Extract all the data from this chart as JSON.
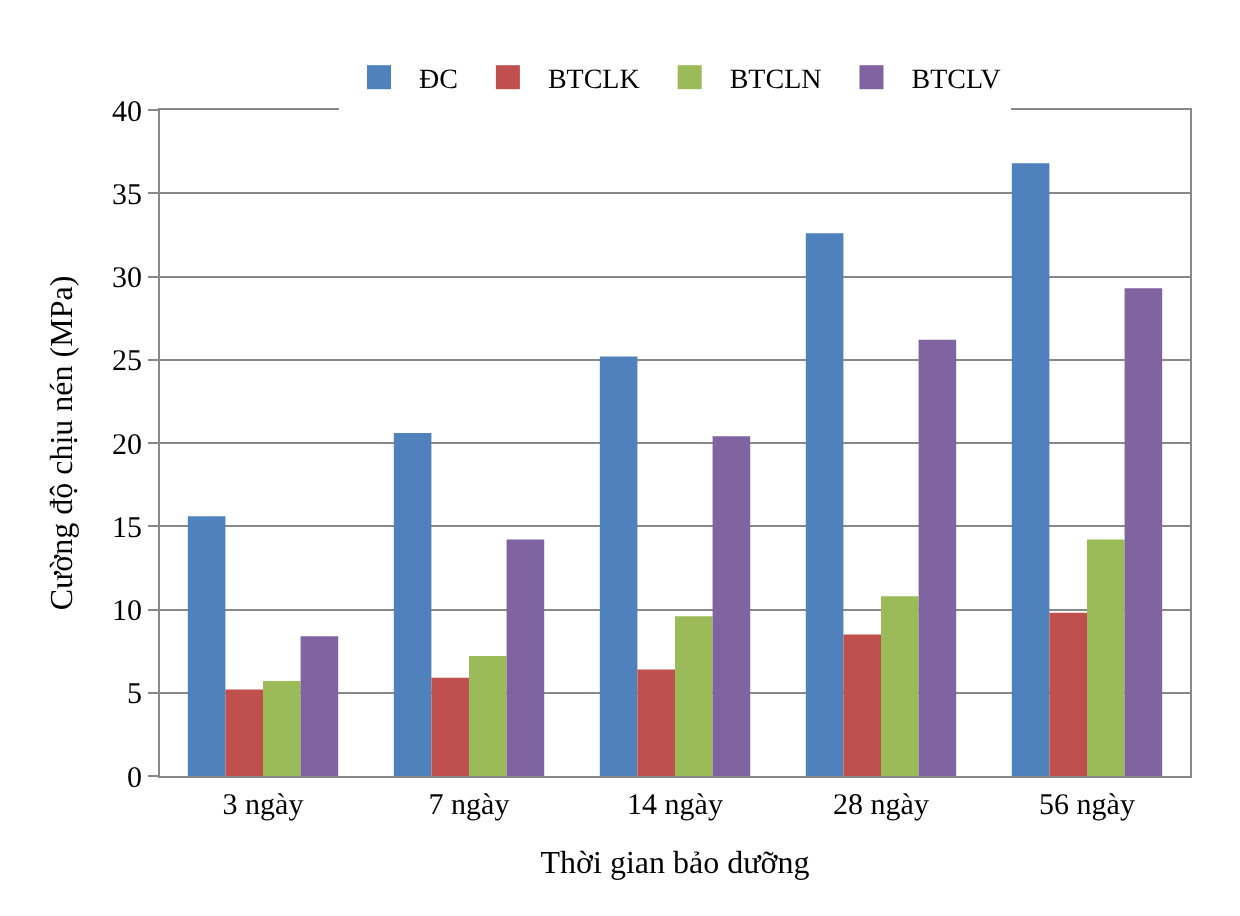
{
  "chart_data": {
    "type": "bar",
    "xlabel": "Thời gian bảo dưỡng",
    "ylabel": "Cường độ chịu nén (MPa)",
    "categories": [
      "3 ngày",
      "7 ngày",
      "14 ngày",
      "28 ngày",
      "56 ngày"
    ],
    "series": [
      {
        "name": "ĐC",
        "color": "#4f81bd",
        "values": [
          15.6,
          20.6,
          25.2,
          32.6,
          36.8
        ]
      },
      {
        "name": "BTCLK",
        "color": "#c0504d",
        "values": [
          5.2,
          5.9,
          6.4,
          8.5,
          9.8
        ]
      },
      {
        "name": "BTCLN",
        "color": "#9bbb59",
        "values": [
          5.7,
          7.2,
          9.6,
          10.8,
          14.2
        ]
      },
      {
        "name": "BTCLV",
        "color": "#8064a2",
        "values": [
          8.4,
          14.2,
          20.4,
          26.2,
          29.3
        ]
      }
    ],
    "ylim": [
      0,
      40
    ],
    "yticks": [
      0,
      5,
      10,
      15,
      20,
      25,
      30,
      35,
      40
    ],
    "grid": "y",
    "legend": "top"
  }
}
